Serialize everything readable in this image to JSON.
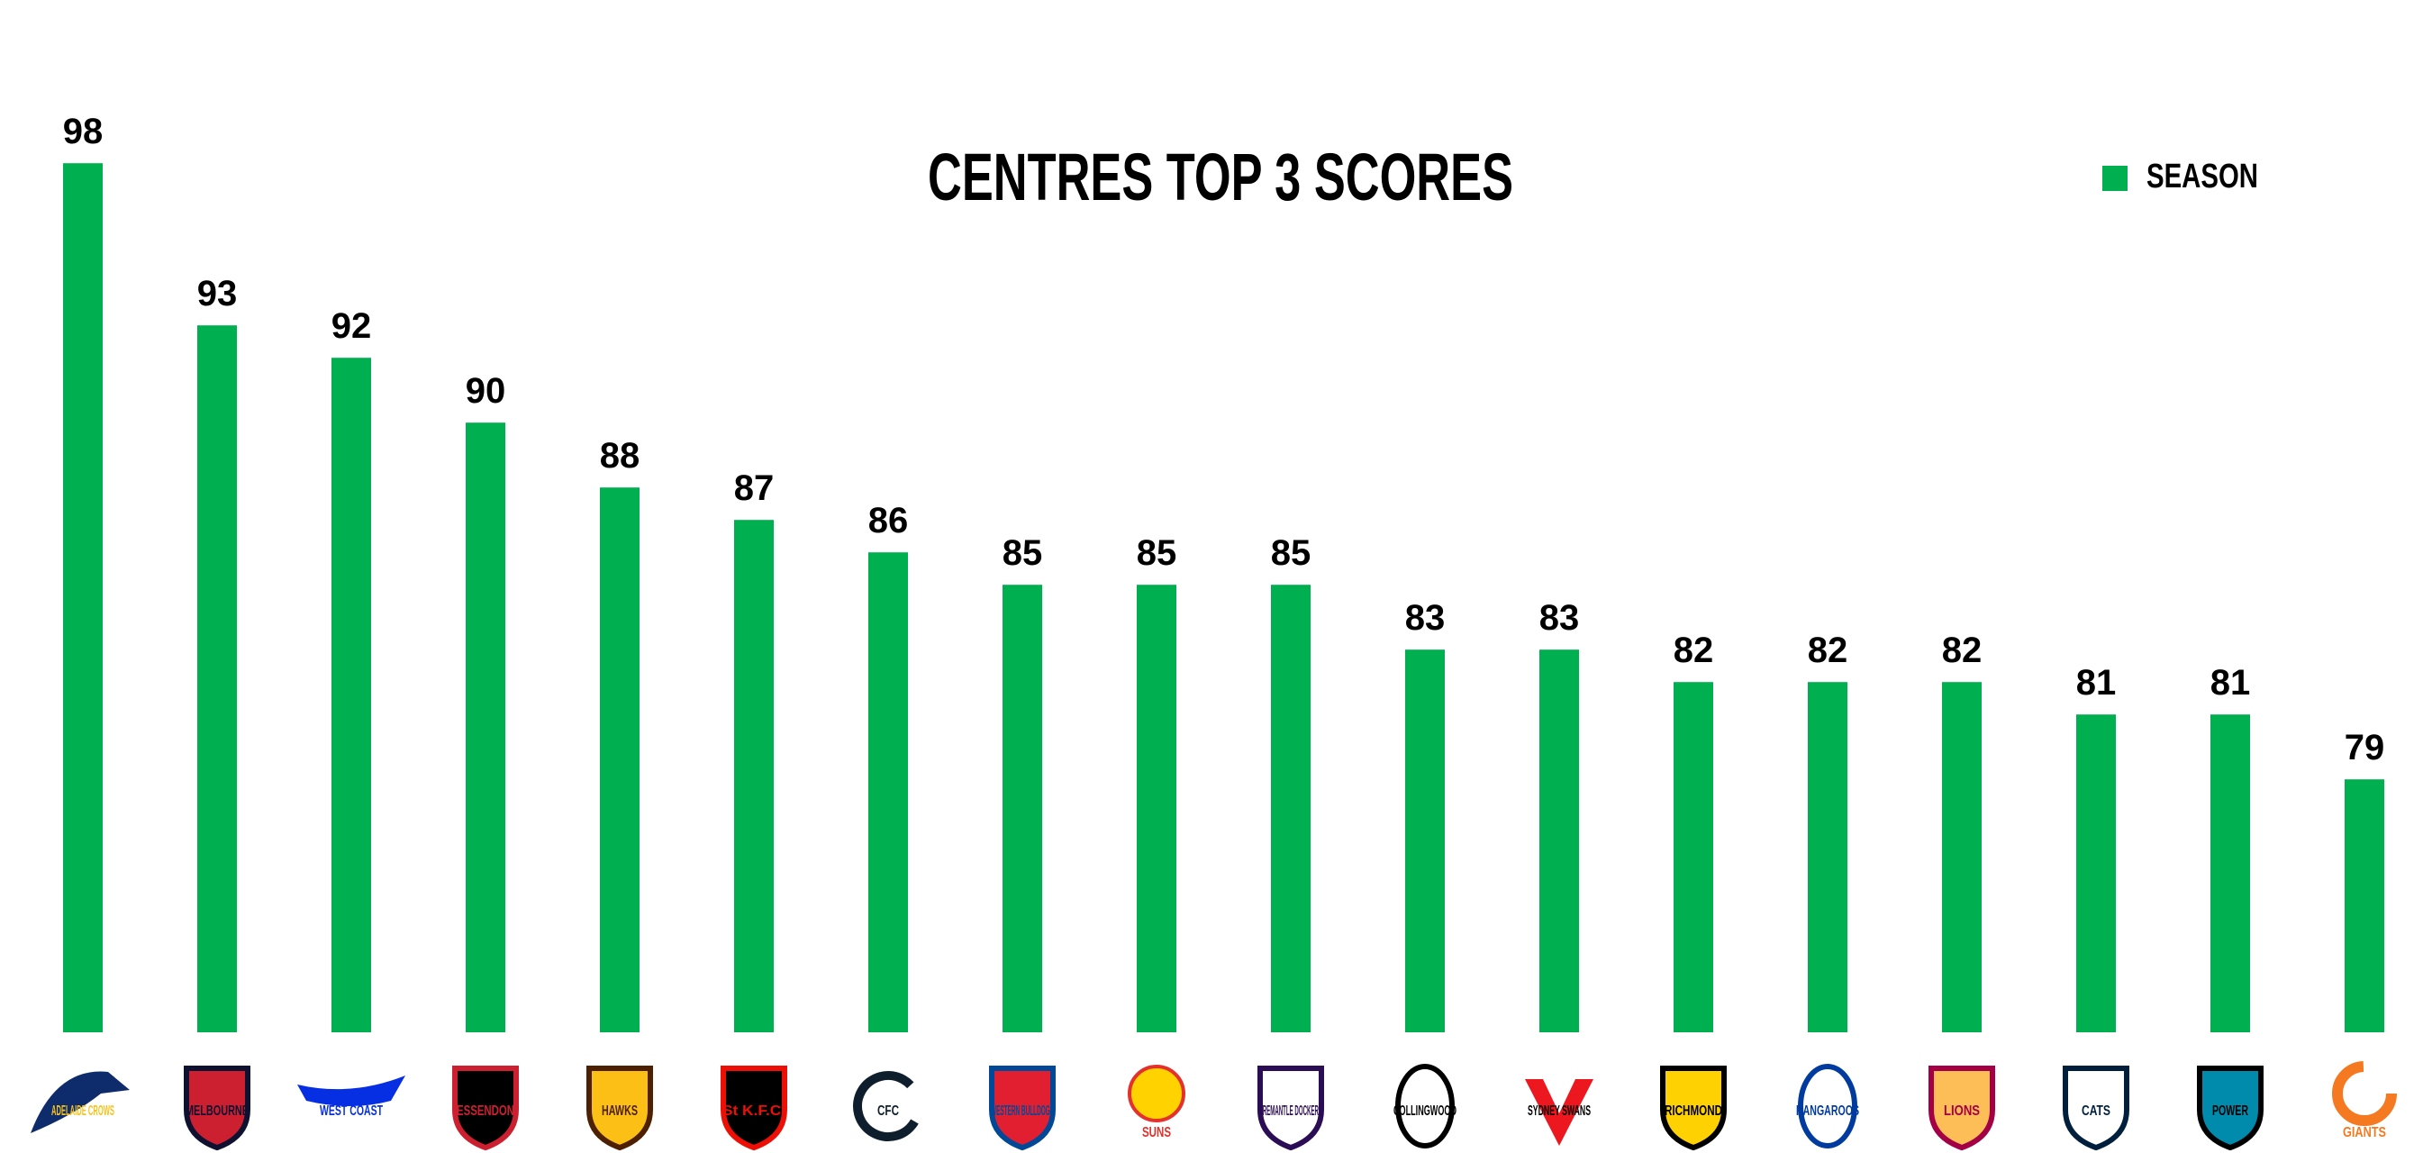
{
  "colors": {
    "bar": "#00B050",
    "text": "#000000"
  },
  "chart_data": {
    "type": "bar",
    "title": "CENTRES TOP 3 SCORES",
    "legend": {
      "position": "top-right",
      "entries": [
        "SEASON"
      ]
    },
    "grid": false,
    "ylim": [
      0,
      100
    ],
    "categories": [
      "Adelaide Crows",
      "Melbourne",
      "West Coast",
      "Essendon",
      "Hawks",
      "St K.F.C.",
      "Carlton",
      "Western Bulldogs",
      "Suns",
      "Fremantle Dockers",
      "Collingwood",
      "Sydney Swans",
      "Richmond",
      "Kangaroos",
      "Brisbane Lions",
      "Geelong Cats",
      "Power",
      "Giants"
    ],
    "series": [
      {
        "name": "SEASON",
        "values": [
          98,
          93,
          92,
          90,
          88,
          87,
          86,
          85,
          85,
          85,
          83,
          83,
          82,
          82,
          82,
          81,
          81,
          79
        ]
      }
    ]
  },
  "logos": [
    {
      "icon": "adelaide-crows-logo",
      "text": "ADELAIDE CROWS",
      "c1": "#0E2C6B",
      "c2": "#E21E31",
      "c3": "#F7C21B",
      "shape": "bird"
    },
    {
      "icon": "melbourne-logo",
      "text": "MELBOURNE",
      "c1": "#0F1131",
      "c2": "#CC2031",
      "c3": "#0F1131",
      "shape": "shield"
    },
    {
      "icon": "west-coast-logo",
      "text": "WEST COAST",
      "c1": "#062EE2",
      "c2": "#F2A900",
      "c3": "#062EE2",
      "shape": "wing"
    },
    {
      "icon": "essendon-logo",
      "text": "ESSENDON",
      "c1": "#CC2031",
      "c2": "#000000",
      "c3": "#CC2031",
      "shape": "shield"
    },
    {
      "icon": "hawthorn-logo",
      "text": "HAWKS",
      "c1": "#4D2004",
      "c2": "#FBBF15",
      "c3": "#4D2004",
      "shape": "shield"
    },
    {
      "icon": "st-kilda-logo",
      "text": "St K.F.C.",
      "c1": "#ED0F05",
      "c2": "#000000",
      "c3": "#ED0F05",
      "shape": "shield"
    },
    {
      "icon": "carlton-logo",
      "text": "CFC",
      "c1": "#0E1E2D",
      "c2": "#0E1E2D",
      "c3": "#0E1E2D",
      "shape": "monogram"
    },
    {
      "icon": "western-bulldogs-logo",
      "text": "WESTERN BULLDOGS",
      "c1": "#014896",
      "c2": "#E21E31",
      "c3": "#014896",
      "shape": "shield"
    },
    {
      "icon": "gold-coast-suns-logo",
      "text": "SUNS",
      "c1": "#E4312B",
      "c2": "#FFD200",
      "c3": "#E4312B",
      "shape": "sun"
    },
    {
      "icon": "fremantle-dockers-logo",
      "text": "FREMANTLE DOCKERS",
      "c1": "#2A0D54",
      "c2": "#FFFFFF",
      "c3": "#2A0D54",
      "shape": "shield"
    },
    {
      "icon": "collingwood-logo",
      "text": "COLLINGWOOD",
      "c1": "#000000",
      "c2": "#FFFFFF",
      "c3": "#000000",
      "shape": "oval"
    },
    {
      "icon": "sydney-swans-logo",
      "text": "SYDNEY SWANS",
      "c1": "#ED171F",
      "c2": "#FFFFFF",
      "c3": "#000000",
      "shape": "v"
    },
    {
      "icon": "richmond-logo",
      "text": "RICHMOND",
      "c1": "#000000",
      "c2": "#FED102",
      "c3": "#000000",
      "shape": "shield"
    },
    {
      "icon": "kangaroos-logo",
      "text": "KANGAROOS",
      "c1": "#013B9F",
      "c2": "#FFFFFF",
      "c3": "#013B9F",
      "shape": "oval"
    },
    {
      "icon": "brisbane-lions-logo",
      "text": "LIONS",
      "c1": "#A30046",
      "c2": "#FDBE57",
      "c3": "#0054A4",
      "shape": "shield"
    },
    {
      "icon": "geelong-cats-logo",
      "text": "CATS",
      "c1": "#001F3D",
      "c2": "#FFFFFF",
      "c3": "#001F3D",
      "shape": "shield"
    },
    {
      "icon": "port-adelaide-logo",
      "text": "POWER",
      "c1": "#000000",
      "c2": "#008AAB",
      "c3": "#000000",
      "shape": "shield"
    },
    {
      "icon": "gws-giants-logo",
      "text": "GIANTS",
      "c1": "#F47920",
      "c2": "#FFFFFF",
      "c3": "#F47920",
      "shape": "g"
    }
  ]
}
